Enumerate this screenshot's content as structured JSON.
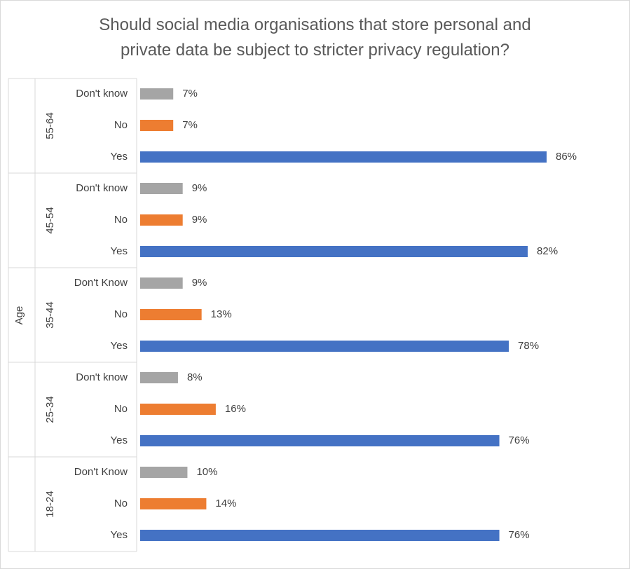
{
  "chart_data": {
    "type": "bar",
    "orientation": "horizontal",
    "title_lines": [
      "Should social media organisations that store personal and",
      "private data be subject to stricter privacy regulation?"
    ],
    "ylabel": "Age",
    "value_format": "percent",
    "xlim": [
      0,
      100
    ],
    "grid": false,
    "legend": "none",
    "groups": [
      {
        "name": "55-64",
        "items": [
          {
            "label": "Don't know",
            "value": 7,
            "display": "7%",
            "color": "#a5a5a5"
          },
          {
            "label": "No",
            "value": 7,
            "display": "7%",
            "color": "#ed7d31"
          },
          {
            "label": "Yes",
            "value": 86,
            "display": "86%",
            "color": "#4472c4"
          }
        ]
      },
      {
        "name": "45-54",
        "items": [
          {
            "label": "Don't know",
            "value": 9,
            "display": "9%",
            "color": "#a5a5a5"
          },
          {
            "label": "No",
            "value": 9,
            "display": "9%",
            "color": "#ed7d31"
          },
          {
            "label": "Yes",
            "value": 82,
            "display": "82%",
            "color": "#4472c4"
          }
        ]
      },
      {
        "name": "35-44",
        "items": [
          {
            "label": "Don't Know",
            "value": 9,
            "display": "9%",
            "color": "#a5a5a5"
          },
          {
            "label": "No",
            "value": 13,
            "display": "13%",
            "color": "#ed7d31"
          },
          {
            "label": "Yes",
            "value": 78,
            "display": "78%",
            "color": "#4472c4"
          }
        ]
      },
      {
        "name": "25-34",
        "items": [
          {
            "label": "Don't know",
            "value": 8,
            "display": "8%",
            "color": "#a5a5a5"
          },
          {
            "label": "No",
            "value": 16,
            "display": "16%",
            "color": "#ed7d31"
          },
          {
            "label": "Yes",
            "value": 76,
            "display": "76%",
            "color": "#4472c4"
          }
        ]
      },
      {
        "name": "18-24",
        "items": [
          {
            "label": "Don't Know",
            "value": 10,
            "display": "10%",
            "color": "#a5a5a5"
          },
          {
            "label": "No",
            "value": 14,
            "display": "14%",
            "color": "#ed7d31"
          },
          {
            "label": "Yes",
            "value": 76,
            "display": "76%",
            "color": "#4472c4"
          }
        ]
      }
    ]
  }
}
